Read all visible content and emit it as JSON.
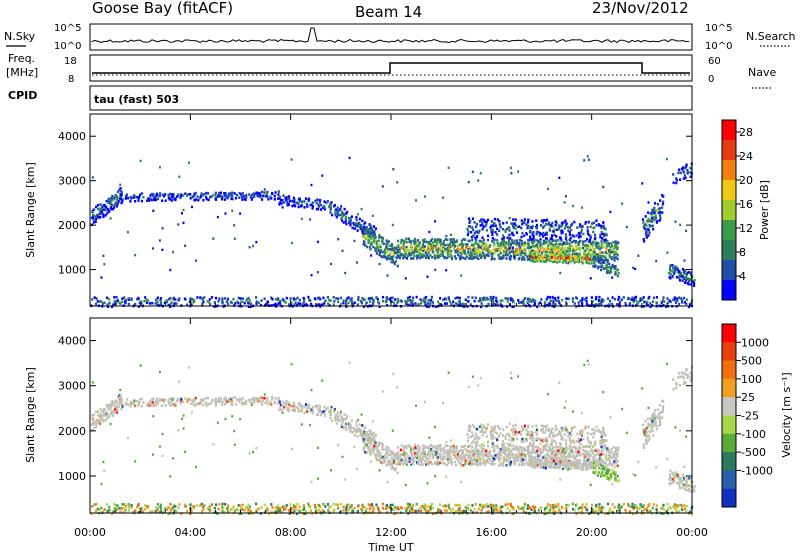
{
  "header": {
    "station": "Goose Bay (fitACF)",
    "beam": "Beam 14",
    "date": "23/Nov/2012"
  },
  "noise_panel": {
    "left_label": "N.Sky",
    "right_label": "N.Search",
    "left_ticks": [
      "10^5",
      "10^0"
    ],
    "right_ticks": [
      "10^5",
      "10^0"
    ]
  },
  "freq_panel": {
    "left_label_top": "Freq.",
    "left_label_unit": "[MHz]",
    "left_label_bottom": "CPID",
    "left_ticks": [
      "18",
      "8"
    ],
    "right_label": "Nave",
    "right_ticks": [
      "60",
      "0"
    ],
    "cpid_text": "tau (fast) 503"
  },
  "colors": {
    "power_scale": [
      "#0000ff",
      "#1f4ea8",
      "#2e7d5a",
      "#3a9b4a",
      "#9fcc2e",
      "#f0c818",
      "#f08010",
      "#e83a10",
      "#ff0000"
    ],
    "velocity_scale": [
      "#1030c0",
      "#2a60a8",
      "#2a7a60",
      "#5aaa3a",
      "#a8d848",
      "#c8c8c0",
      "#f0a020",
      "#f07010",
      "#e84010",
      "#ff0000"
    ],
    "ground_scatter": "#c0c0b8"
  },
  "chart_data": [
    {
      "type": "heatmap",
      "name_hint": "power",
      "ylabel": "Slant Range [km]",
      "ylim": [
        180,
        4500
      ],
      "yticks": [
        "1000",
        "2000",
        "3000",
        "4000"
      ],
      "xlim_hours": [
        0,
        24
      ],
      "colorbar_label": "Power [dB]",
      "colorbar_ticks": [
        "4",
        "8",
        "12",
        "16",
        "20",
        "24",
        "28"
      ],
      "colorbar_range": [
        0,
        30
      ]
    },
    {
      "type": "heatmap",
      "name_hint": "velocity",
      "ylabel": "Slant Range [km]",
      "ylim": [
        180,
        4500
      ],
      "yticks": [
        "1000",
        "2000",
        "3000",
        "4000"
      ],
      "xlim_hours": [
        0,
        24
      ],
      "colorbar_label": "Velocity [m s⁻¹]",
      "colorbar_ticks": [
        "1000",
        "500",
        "100",
        "25",
        "-25",
        "-100",
        "-500",
        "-1000"
      ]
    }
  ],
  "xaxis": {
    "label": "Time UT",
    "ticks": [
      "00:00",
      "04:00",
      "08:00",
      "12:00",
      "16:00",
      "20:00",
      "00:00"
    ]
  }
}
